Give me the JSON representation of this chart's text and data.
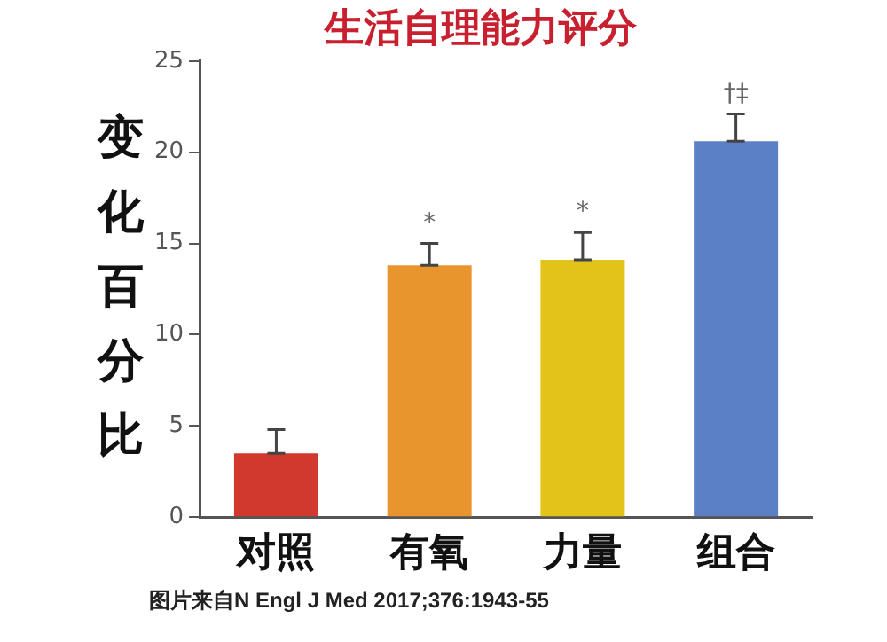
{
  "chart_data": {
    "type": "bar",
    "title": "生活自理能力评分",
    "ylabel": "变化百分比",
    "categories": [
      "对照",
      "有氧",
      "力量",
      "组合"
    ],
    "values": [
      3.5,
      13.8,
      14.1,
      20.6
    ],
    "colors": [
      "#d0392c",
      "#e8952e",
      "#e3c21a",
      "#5b80c6"
    ],
    "errors": [
      [
        3.5,
        4.8
      ],
      [
        13.8,
        15.0
      ],
      [
        14.1,
        15.6
      ],
      [
        20.6,
        22.1
      ]
    ],
    "ylim": [
      0,
      25
    ],
    "yticks": [
      0,
      5,
      10,
      15,
      20,
      25
    ],
    "grid": false,
    "legend": false,
    "annotations": [
      {
        "text": "*",
        "x": "有氧",
        "y": 15.0
      },
      {
        "text": "*",
        "x": "力量",
        "y": 15.6
      },
      {
        "text": "†‡",
        "x": "组合",
        "y": 22.1
      },
      "图片来自N Engl J Med 2017;376:1943-55"
    ]
  }
}
